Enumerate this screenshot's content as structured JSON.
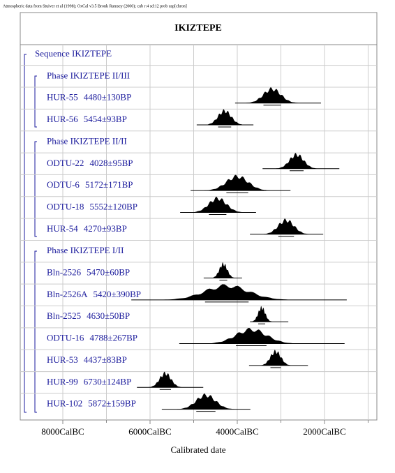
{
  "chart_data": {
    "type": "oxcal",
    "note": "Atmospheric data from Stuiver et al (1998); OxCal v3.5 Bronk Ramsey (2000); cub r:4 sd:12 prob usp[chron]",
    "title": "IKIZTEPE",
    "xlabel": "Calibrated date",
    "xlim": [
      8976,
      800
    ],
    "xticks": [
      {
        "value": 8000,
        "label": "8000CalBC"
      },
      {
        "value": 6000,
        "label": "6000CalBC"
      },
      {
        "value": 4000,
        "label": "4000CalBC"
      },
      {
        "value": 2000,
        "label": "2000CalBC"
      }
    ],
    "xminor": [
      7000,
      5000,
      3000,
      1000
    ],
    "grid": true,
    "color": "#000000",
    "rows": [
      {
        "label": "Sequence IKIZTEPE"
      },
      {
        "label": "Phase IKIZTEPE II/III"
      },
      {
        "label": "HUR-55",
        "date": "4480±130BP",
        "range": [
          4050,
          2080
        ],
        "peak": 3200,
        "spread": 200
      },
      {
        "label": "HUR-56",
        "date": "5454±93BP",
        "range": [
          4930,
          3630
        ],
        "peak": 4290,
        "spread": 150
      },
      {
        "label": "Phase IKIZTEPE II/II"
      },
      {
        "label": "ODTU-22",
        "date": "4028±95BP",
        "range": [
          3420,
          1660
        ],
        "peak": 2640,
        "spread": 160
      },
      {
        "label": "ODTU-6",
        "date": "5172±171BP",
        "range": [
          5070,
          2780
        ],
        "peak": 4000,
        "spread": 250
      },
      {
        "label": "ODTU-18",
        "date": "5552±120BP",
        "range": [
          5310,
          3570
        ],
        "peak": 4450,
        "spread": 200
      },
      {
        "label": "HUR-54",
        "date": "4270±93BP",
        "range": [
          3710,
          2030
        ],
        "peak": 2880,
        "spread": 180
      },
      {
        "label": "Phase IKIZTEPE I/II"
      },
      {
        "label": "Bln-2526",
        "date": "5470±60BP",
        "range": [
          4770,
          3890
        ],
        "peak": 4320,
        "spread": 90
      },
      {
        "label": "Bln-2526A",
        "date": "5420±390BP",
        "range": [
          6430,
          1490
        ],
        "peak": 4240,
        "spread": 500
      },
      {
        "label": "Bln-2525",
        "date": "4630±50BP",
        "range": [
          3710,
          2830
        ],
        "peak": 3440,
        "spread": 80
      },
      {
        "label": "ODTU-16",
        "date": "4788±267BP",
        "range": [
          5330,
          1540
        ],
        "peak": 3680,
        "spread": 350
      },
      {
        "label": "HUR-53",
        "date": "4437±83BP",
        "range": [
          3730,
          2380
        ],
        "peak": 3120,
        "spread": 120
      },
      {
        "label": "HUR-99",
        "date": "6730±124BP",
        "range": [
          6300,
          4780
        ],
        "peak": 5650,
        "spread": 130
      },
      {
        "label": "HUR-102",
        "date": "5872±159BP",
        "range": [
          5730,
          3700
        ],
        "peak": 4720,
        "spread": 220
      }
    ]
  }
}
